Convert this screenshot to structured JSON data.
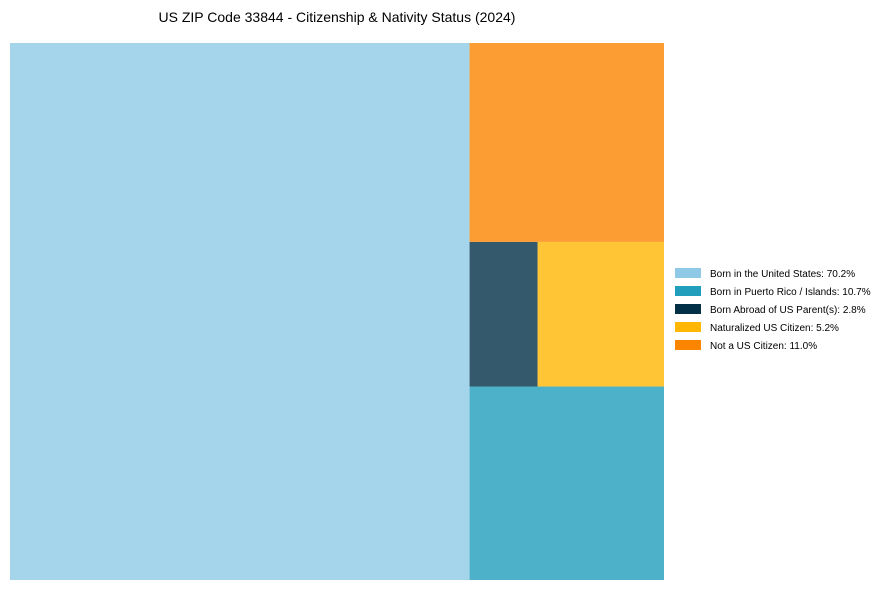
{
  "chart_data": {
    "type": "treemap",
    "title": "US ZIP Code 33844 - Citizenship & Nativity Status (2024)",
    "categories": [
      "Born in the United States",
      "Born in Puerto Rico / Islands",
      "Born Abroad of US Parent(s)",
      "Naturalized US Citizen",
      "Not a US Citizen"
    ],
    "values": [
      70.2,
      10.7,
      2.8,
      5.2,
      11.0
    ],
    "legend_labels": [
      "Born in the United States: 70.2%",
      "Born in Puerto Rico / Islands: 10.7%",
      "Born Abroad of US Parent(s): 2.8%",
      "Naturalized US Citizen: 5.2%",
      "Not a US Citizen: 11.0%"
    ],
    "legend_colors": [
      "#8ecae6",
      "#219ebc",
      "#023047",
      "#ffb703",
      "#fb8500"
    ],
    "tile_opacity": 0.8,
    "legend_position": "center-right"
  }
}
